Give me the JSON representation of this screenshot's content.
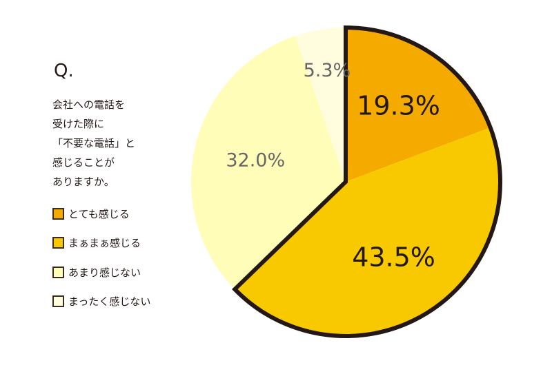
{
  "question": {
    "prefix": "Q.",
    "lines": [
      "会社への電話を",
      "受けた際に",
      "「不要な電話」と",
      "感じることが",
      "ありますか。"
    ]
  },
  "chart_data": {
    "type": "pie",
    "start": "12 o'clock, clockwise",
    "categories": [
      "とても感じる",
      "まぁまぁ感じる",
      "あまり感じない",
      "まったく感じない"
    ],
    "values": [
      19.3,
      43.5,
      32.0,
      5.3
    ],
    "labels": [
      "19.3%",
      "43.5%",
      "32.0%",
      "5.3%"
    ],
    "colors": [
      "#F5AA00",
      "#F9C900",
      "#FFFDB8",
      "#FFFDDE"
    ],
    "label_colors": [
      "#231815",
      "#231815",
      "#666666",
      "#666666"
    ],
    "outline_color": "#231815",
    "legend": "left"
  }
}
